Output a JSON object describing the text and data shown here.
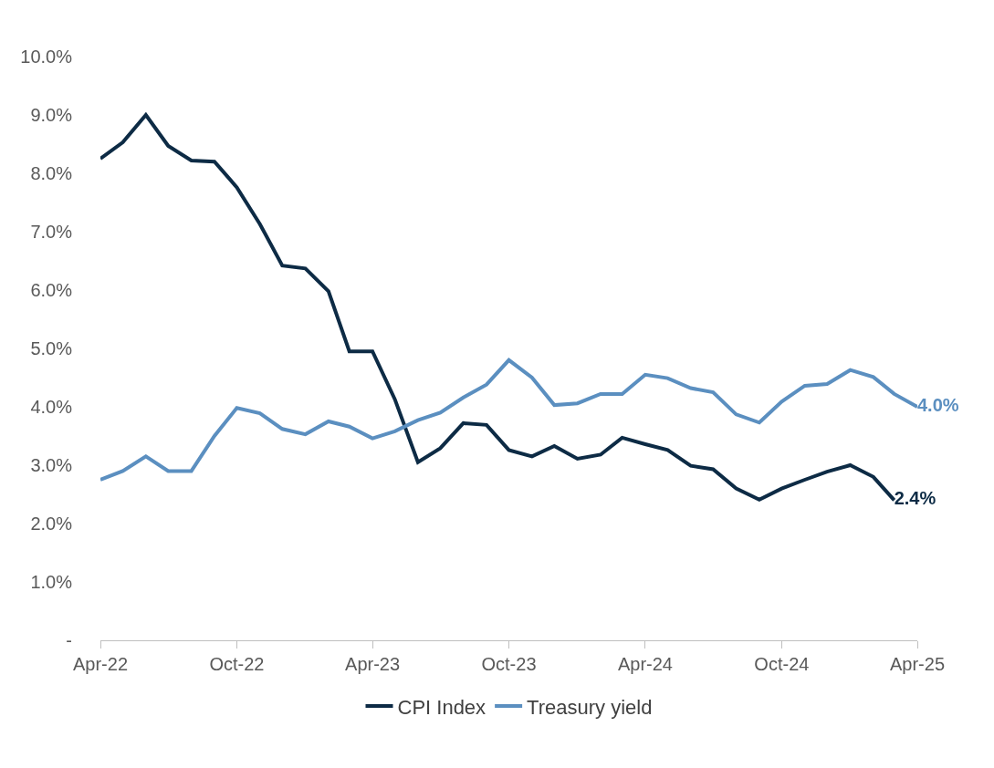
{
  "chart_data": {
    "type": "line",
    "x": [
      "2022-04",
      "2022-05",
      "2022-06",
      "2022-07",
      "2022-08",
      "2022-09",
      "2022-10",
      "2022-11",
      "2022-12",
      "2023-01",
      "2023-02",
      "2023-03",
      "2023-04",
      "2023-05",
      "2023-06",
      "2023-07",
      "2023-08",
      "2023-09",
      "2023-10",
      "2023-11",
      "2023-12",
      "2024-01",
      "2024-02",
      "2024-03",
      "2024-04",
      "2024-05",
      "2024-06",
      "2024-07",
      "2024-08",
      "2024-09",
      "2024-10",
      "2024-11",
      "2024-12",
      "2025-01",
      "2025-02",
      "2025-03",
      "2025-04"
    ],
    "series": [
      {
        "name": "CPI Index",
        "color": "#0d2b45",
        "values": [
          8.25,
          8.53,
          9.0,
          8.47,
          8.22,
          8.2,
          7.76,
          7.13,
          6.42,
          6.37,
          5.98,
          4.95,
          4.95,
          4.13,
          3.05,
          3.29,
          3.72,
          3.69,
          3.26,
          3.15,
          3.33,
          3.11,
          3.18,
          3.47,
          3.36,
          3.26,
          2.99,
          2.93,
          2.6,
          2.41,
          2.6,
          2.75,
          2.89,
          3.0,
          2.8,
          2.4,
          null
        ],
        "value_labels": [
          null,
          null,
          null,
          null,
          null,
          null,
          null,
          null,
          null,
          null,
          null,
          null,
          null,
          null,
          null,
          null,
          null,
          null,
          null,
          null,
          null,
          null,
          null,
          null,
          null,
          null,
          null,
          null,
          null,
          null,
          null,
          null,
          null,
          null,
          null,
          "2.4%",
          null
        ]
      },
      {
        "name": "Treasury yield",
        "color": "#5b8fc0",
        "values": [
          2.75,
          2.9,
          3.15,
          2.9,
          2.9,
          3.5,
          3.98,
          3.89,
          3.62,
          3.53,
          3.75,
          3.66,
          3.46,
          3.58,
          3.77,
          3.9,
          4.16,
          4.38,
          4.8,
          4.5,
          4.03,
          4.06,
          4.22,
          4.22,
          4.55,
          4.49,
          4.32,
          4.25,
          3.87,
          3.73,
          4.09,
          4.36,
          4.39,
          4.63,
          4.51,
          4.22,
          4.0
        ],
        "value_labels": [
          null,
          null,
          null,
          null,
          null,
          null,
          null,
          null,
          null,
          null,
          null,
          null,
          null,
          null,
          null,
          null,
          null,
          null,
          null,
          null,
          null,
          null,
          null,
          null,
          null,
          null,
          null,
          null,
          null,
          null,
          null,
          null,
          null,
          null,
          null,
          null,
          "4.0%"
        ]
      }
    ],
    "xlim": [
      "2022-04",
      "2025-04"
    ],
    "xticks": [
      {
        "value": "2022-04",
        "label": "Apr-22"
      },
      {
        "value": "2022-10",
        "label": "Oct-22"
      },
      {
        "value": "2023-04",
        "label": "Apr-23"
      },
      {
        "value": "2023-10",
        "label": "Oct-23"
      },
      {
        "value": "2024-04",
        "label": "Apr-24"
      },
      {
        "value": "2024-10",
        "label": "Oct-24"
      },
      {
        "value": "2025-04",
        "label": "Apr-25"
      }
    ],
    "ylim": [
      0,
      10
    ],
    "yticks": [
      {
        "value": 0,
        "label": "-"
      },
      {
        "value": 1,
        "label": "1.0%"
      },
      {
        "value": 2,
        "label": "2.0%"
      },
      {
        "value": 3,
        "label": "3.0%"
      },
      {
        "value": 4,
        "label": "4.0%"
      },
      {
        "value": 5,
        "label": "5.0%"
      },
      {
        "value": 6,
        "label": "6.0%"
      },
      {
        "value": 7,
        "label": "7.0%"
      },
      {
        "value": 8,
        "label": "8.0%"
      },
      {
        "value": 9,
        "label": "9.0%"
      },
      {
        "value": 10,
        "label": "10.0%"
      }
    ],
    "grid": false,
    "legend": "bottom",
    "marker": "none",
    "line_style": "solid"
  }
}
